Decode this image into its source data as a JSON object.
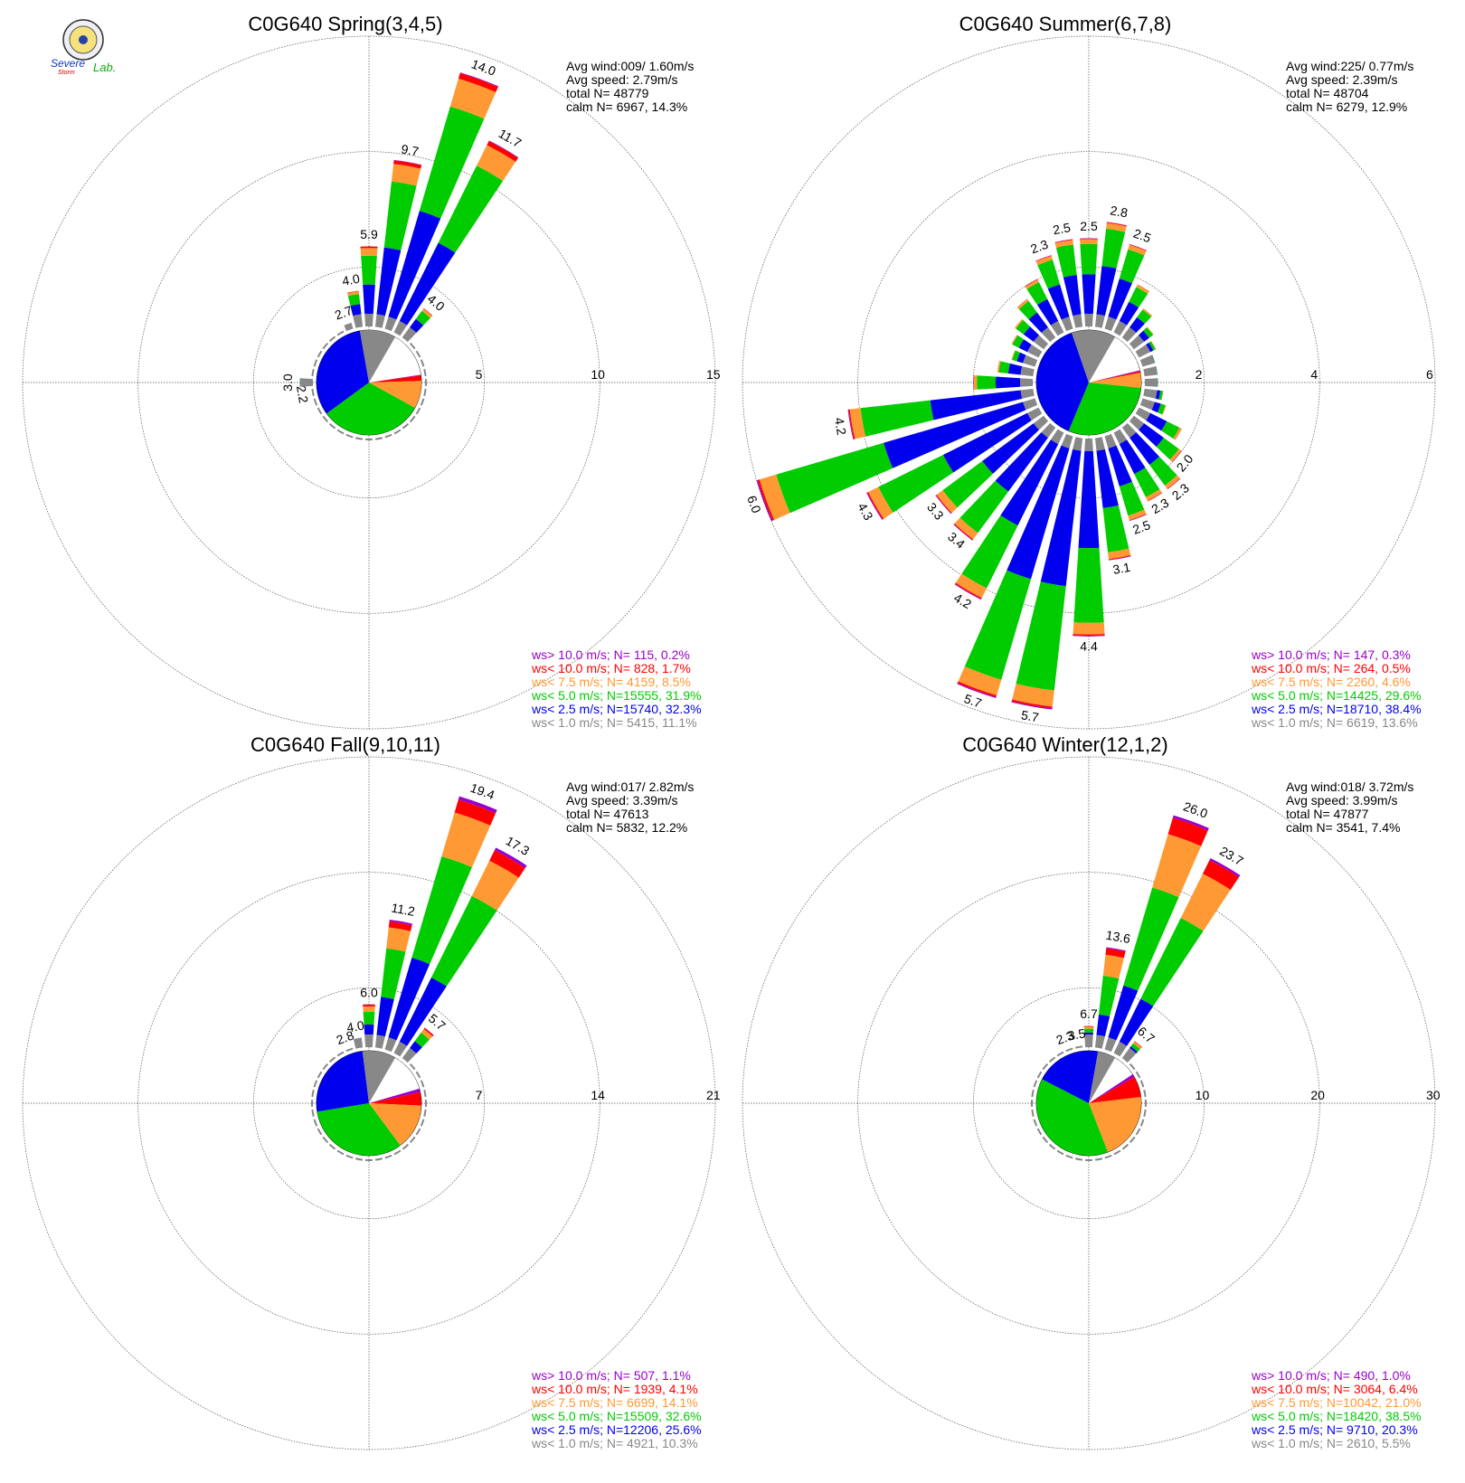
{
  "logo": {
    "text_top": "Severe",
    "text_mid": "Storm",
    "text_right": "Lab."
  },
  "legend_labels": [
    "ws> 10.0 m/s; N=",
    "ws< 10.0 m/s; N=",
    "ws<  7.5 m/s; N=",
    "ws<  5.0 m/s; N=",
    "ws<  2.5 m/s; N=",
    "ws<  1.0 m/s; N="
  ],
  "colors": {
    "calm": "#ffffff",
    "c1": "#888888",
    "c2": "#0000ee",
    "c3": "#00cc00",
    "c4": "#ff9933",
    "c5": "#ff0000",
    "c6": "#9900cc",
    "grid": "#555555"
  },
  "chart_data": [
    {
      "type": "wind-rose",
      "title": "C0G640 Spring(3,4,5)",
      "stats": [
        "Avg wind:009/ 1.60m/s",
        "Avg speed: 2.79m/s",
        "total N=       48779",
        "calm N=   6967,  14.3%"
      ],
      "rings": [
        5,
        10,
        15
      ],
      "ring_labels": [
        "5",
        "10",
        "15"
      ],
      "calm_percent": 14.3,
      "legend": [
        "  115,  0.2%",
        "  828,  1.7%",
        " 4159,  8.5%",
        "15555, 31.9%",
        "15740, 32.3%",
        " 5415, 11.1%"
      ],
      "class_percent": [
        0.2,
        1.7,
        8.5,
        31.9,
        32.3,
        11.1
      ],
      "sector_totals": [
        5.9,
        9.7,
        14.0,
        11.7,
        4.0,
        1.2,
        0.7,
        0.6,
        0.6,
        0.7,
        0.6,
        0.6,
        0.6,
        0.6,
        0.7,
        0.8,
        0.9,
        1.0,
        1.0,
        1.1,
        1.1,
        1.3,
        1.4,
        1.6,
        1.7,
        2.0,
        2.2,
        3.0,
        2.2,
        1.6,
        1.2,
        1.2,
        1.4,
        1.8,
        2.7,
        4.0
      ],
      "labeled_totals": [
        5.9,
        9.7,
        14.0,
        11.7,
        4.0,
        null,
        null,
        null,
        null,
        null,
        null,
        null,
        null,
        null,
        null,
        null,
        null,
        null,
        null,
        null,
        null,
        null,
        null,
        null,
        null,
        null,
        2.2,
        3.0,
        null,
        null,
        null,
        null,
        null,
        null,
        2.7,
        4.0
      ]
    },
    {
      "type": "wind-rose",
      "title": "C0G640 Summer(6,7,8)",
      "stats": [
        "Avg wind:225/ 0.77m/s",
        "Avg speed: 2.39m/s",
        "total N=       48704",
        "calm N=   6279,  12.9%"
      ],
      "rings": [
        2,
        4,
        6
      ],
      "ring_labels": [
        "2",
        "4",
        "6"
      ],
      "calm_percent": 12.9,
      "legend": [
        "  147,  0.3%",
        "  264,  0.5%",
        " 2260,  4.6%",
        "14425, 29.6%",
        "18710, 38.4%",
        " 6619, 13.6%"
      ],
      "class_percent": [
        0.3,
        0.5,
        4.6,
        29.6,
        38.4,
        13.6
      ],
      "sector_totals": [
        2.5,
        2.8,
        2.5,
        1.9,
        1.6,
        1.4,
        1.3,
        1.2,
        1.2,
        1.2,
        1.3,
        1.4,
        1.8,
        2.0,
        2.3,
        2.3,
        2.5,
        3.1,
        4.4,
        5.7,
        5.7,
        4.2,
        3.4,
        3.3,
        4.3,
        6.0,
        4.2,
        2.0,
        1.6,
        1.4,
        1.5,
        1.6,
        1.8,
        2.0,
        2.3,
        2.5
      ],
      "labeled_totals": [
        2.5,
        2.8,
        2.5,
        null,
        null,
        null,
        null,
        null,
        null,
        null,
        null,
        null,
        null,
        2.0,
        2.3,
        2.3,
        2.5,
        3.1,
        4.4,
        5.7,
        5.7,
        4.2,
        3.4,
        3.3,
        4.3,
        6.0,
        4.2,
        null,
        null,
        null,
        null,
        null,
        null,
        null,
        2.3,
        2.5
      ]
    },
    {
      "type": "wind-rose",
      "title": "C0G640 Fall(9,10,11)",
      "stats": [
        "Avg wind:017/ 2.82m/s",
        "Avg speed: 3.39m/s",
        "total N=       47613",
        "calm N=   5832,  12.2%"
      ],
      "rings": [
        7,
        14,
        21
      ],
      "ring_labels": [
        "7",
        "14",
        "21"
      ],
      "calm_percent": 12.2,
      "legend": [
        "  507,  1.1%",
        " 1939,  4.1%",
        " 6699, 14.1%",
        "15509, 32.6%",
        "12206, 25.6%",
        " 4921, 10.3%"
      ],
      "class_percent": [
        1.1,
        4.1,
        14.1,
        32.6,
        25.6,
        10.3
      ],
      "sector_totals": [
        6.0,
        11.2,
        19.4,
        17.3,
        5.7,
        1.1,
        0.8,
        0.8,
        0.8,
        0.8,
        0.9,
        1.0,
        1.1,
        1.2,
        1.3,
        1.4,
        1.5,
        1.6,
        1.6,
        1.6,
        1.6,
        1.6,
        1.5,
        1.4,
        1.3,
        1.2,
        1.1,
        1.0,
        1.0,
        1.0,
        1.0,
        1.1,
        1.3,
        1.8,
        2.8,
        4.0
      ],
      "labeled_totals": [
        6.0,
        11.2,
        19.4,
        17.3,
        5.7,
        null,
        null,
        null,
        null,
        null,
        null,
        null,
        null,
        null,
        null,
        null,
        null,
        null,
        null,
        null,
        null,
        null,
        null,
        null,
        null,
        null,
        null,
        null,
        null,
        null,
        null,
        null,
        null,
        null,
        2.8,
        4.0
      ]
    },
    {
      "type": "wind-rose",
      "title": "C0G640 Winter(12,1,2)",
      "stats": [
        "Avg wind:018/ 3.72m/s",
        "Avg speed: 3.99m/s",
        "total N=       47877",
        "calm N=   3541,   7.4%"
      ],
      "rings": [
        10,
        20,
        30
      ],
      "ring_labels": [
        "10",
        "20",
        "30"
      ],
      "calm_percent": 7.4,
      "legend": [
        "  490,  1.0%",
        " 3064,  6.4%",
        "10042, 21.0%",
        "18420, 38.5%",
        " 9710, 20.3%",
        " 2610,  5.5%"
      ],
      "class_percent": [
        1.0,
        6.4,
        21.0,
        38.5,
        20.3,
        5.5
      ],
      "sector_totals": [
        6.7,
        13.6,
        26.0,
        23.7,
        6.7,
        1.0,
        0.6,
        0.5,
        0.4,
        0.4,
        0.4,
        0.4,
        0.4,
        0.4,
        0.4,
        0.4,
        0.4,
        0.4,
        0.4,
        0.4,
        0.4,
        0.4,
        0.4,
        0.4,
        0.4,
        0.4,
        0.4,
        0.4,
        0.4,
        0.4,
        0.5,
        0.6,
        0.8,
        1.2,
        2.3,
        3.5
      ],
      "labeled_totals": [
        6.7,
        13.6,
        26.0,
        23.7,
        6.7,
        null,
        null,
        null,
        null,
        null,
        null,
        null,
        null,
        null,
        null,
        null,
        null,
        null,
        null,
        null,
        null,
        null,
        null,
        null,
        null,
        null,
        null,
        null,
        null,
        null,
        null,
        null,
        null,
        null,
        2.3,
        3.5
      ]
    }
  ]
}
